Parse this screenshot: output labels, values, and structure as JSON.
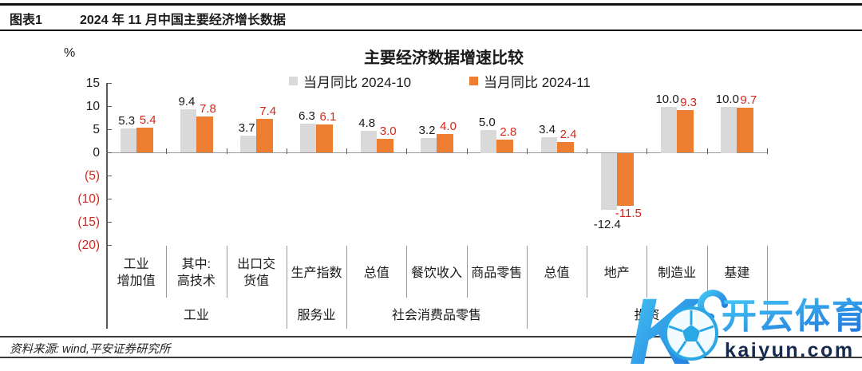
{
  "header": {
    "tag": "图表1",
    "title": "2024 年 11 月中国主要经济增长数据"
  },
  "chart_data": {
    "type": "bar",
    "title": "主要经济数据增速比较",
    "unit_label": "%",
    "legend": [
      "当月同比 2024-10",
      "当月同比 2024-11"
    ],
    "legend_position": "top",
    "grid": false,
    "ylim": [
      -20,
      15
    ],
    "categories": [
      {
        "label": "工业增加值",
        "lines": [
          "工业",
          "增加值"
        ]
      },
      {
        "label": "其中:高技术",
        "lines": [
          "其中:",
          "高技术"
        ]
      },
      {
        "label": "出口交货值",
        "lines": [
          "出口交",
          "货值"
        ]
      },
      {
        "label": "生产指数",
        "lines": [
          "生产指数"
        ]
      },
      {
        "label": "总值",
        "lines": [
          "总值"
        ]
      },
      {
        "label": "餐饮收入",
        "lines": [
          "餐饮收入"
        ]
      },
      {
        "label": "商品零售",
        "lines": [
          "商品零售"
        ]
      },
      {
        "label": "总值",
        "lines": [
          "总值"
        ]
      },
      {
        "label": "地产",
        "lines": [
          "地产"
        ]
      },
      {
        "label": "制造业",
        "lines": [
          "制造业"
        ]
      },
      {
        "label": "基建",
        "lines": [
          "基建"
        ]
      }
    ],
    "groups": [
      {
        "label": "工业",
        "span": 3
      },
      {
        "label": "服务业",
        "span": 1
      },
      {
        "label": "社会消费品零售",
        "span": 3
      },
      {
        "label": "投资",
        "span": 4
      }
    ],
    "series": [
      {
        "name": "当月同比 2024-10",
        "color": "#d9d9d9",
        "label_color": "#1a1a1a",
        "values": [
          5.3,
          9.4,
          3.7,
          6.3,
          4.8,
          3.2,
          5.0,
          3.4,
          -12.4,
          10.0,
          10.0
        ]
      },
      {
        "name": "当月同比 2024-11",
        "color": "#ed7d31",
        "label_color": "#d0281e",
        "values": [
          5.4,
          7.8,
          7.4,
          6.1,
          3.0,
          4.0,
          2.8,
          2.4,
          -11.5,
          9.3,
          9.7
        ]
      }
    ],
    "y_axis": {
      "ticks": [
        15,
        10,
        5,
        0,
        -5,
        -10,
        -15,
        -20
      ],
      "tick_labels": [
        "15",
        "10",
        "5",
        "0",
        "(5)",
        "(10)",
        "(15)",
        "(20)"
      ],
      "negative_label_color": "#d0281e"
    }
  },
  "footer": {
    "source": "资料来源: wind,平安证券研究所"
  },
  "watermark": {
    "letter": "K",
    "brand": "开云体育",
    "domain": "kaiyun.com",
    "brand_color_start": "#45c8f5",
    "brand_color_end": "#1e6fd9",
    "domain_color": "#16294e"
  }
}
